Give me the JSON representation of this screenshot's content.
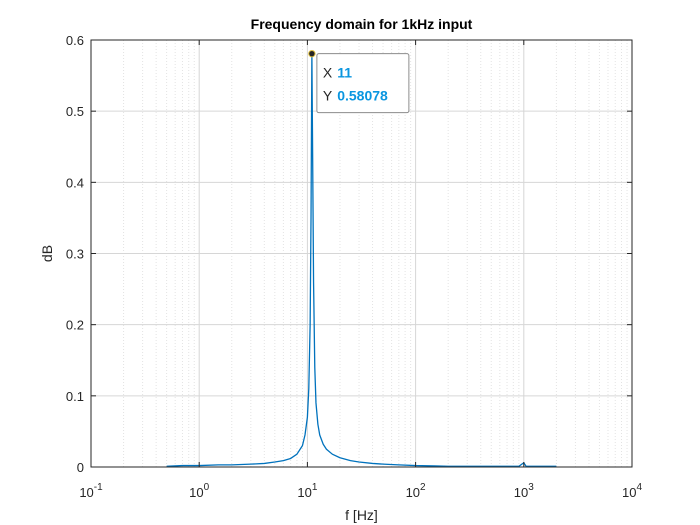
{
  "chart_data": {
    "type": "line",
    "title": "Frequency domain for 1kHz input",
    "xlabel": "f [Hz]",
    "ylabel": "dB",
    "xscale": "log",
    "xlim": [
      0.1,
      10000
    ],
    "ylim": [
      0,
      0.6
    ],
    "grid": true,
    "xticks": [
      {
        "value": 0.1,
        "base": "10",
        "exp": "-1"
      },
      {
        "value": 1,
        "base": "10",
        "exp": "0"
      },
      {
        "value": 10,
        "base": "10",
        "exp": "1"
      },
      {
        "value": 100,
        "base": "10",
        "exp": "2"
      },
      {
        "value": 1000,
        "base": "10",
        "exp": "3"
      },
      {
        "value": 10000,
        "base": "10",
        "exp": "4"
      }
    ],
    "yticks": [
      {
        "value": 0,
        "label": "0"
      },
      {
        "value": 0.1,
        "label": "0.1"
      },
      {
        "value": 0.2,
        "label": "0.2"
      },
      {
        "value": 0.3,
        "label": "0.3"
      },
      {
        "value": 0.4,
        "label": "0.4"
      },
      {
        "value": 0.5,
        "label": "0.5"
      },
      {
        "value": 0.6,
        "label": "0.6"
      }
    ],
    "series": [
      {
        "color": "#0072bd",
        "x": [
          0.5,
          0.7,
          1,
          1.5,
          2,
          3,
          4,
          5,
          6,
          7,
          8,
          9,
          9.5,
          10,
          10.3,
          10.6,
          10.8,
          11,
          11.2,
          11.4,
          11.7,
          12,
          12.5,
          13,
          14,
          15,
          17,
          20,
          25,
          30,
          40,
          50,
          70,
          100,
          150,
          200,
          300,
          500,
          700,
          900,
          1000,
          1050,
          1100,
          1300,
          1500,
          2000
        ],
        "y": [
          0.001,
          0.002,
          0.002,
          0.003,
          0.003,
          0.004,
          0.005,
          0.007,
          0.009,
          0.012,
          0.018,
          0.03,
          0.045,
          0.07,
          0.11,
          0.2,
          0.35,
          0.58078,
          0.42,
          0.26,
          0.14,
          0.09,
          0.06,
          0.045,
          0.032,
          0.025,
          0.018,
          0.013,
          0.009,
          0.007,
          0.005,
          0.004,
          0.003,
          0.002,
          0.0015,
          0.001,
          0.001,
          0.001,
          0.001,
          0.001,
          0.006,
          0.001,
          0.001,
          0.001,
          0.001,
          0.001
        ]
      }
    ],
    "datatip": {
      "x_key": "X",
      "x_value": "11",
      "y_key": "Y",
      "y_value": "0.58078",
      "x": 11,
      "y": 0.58078
    }
  }
}
